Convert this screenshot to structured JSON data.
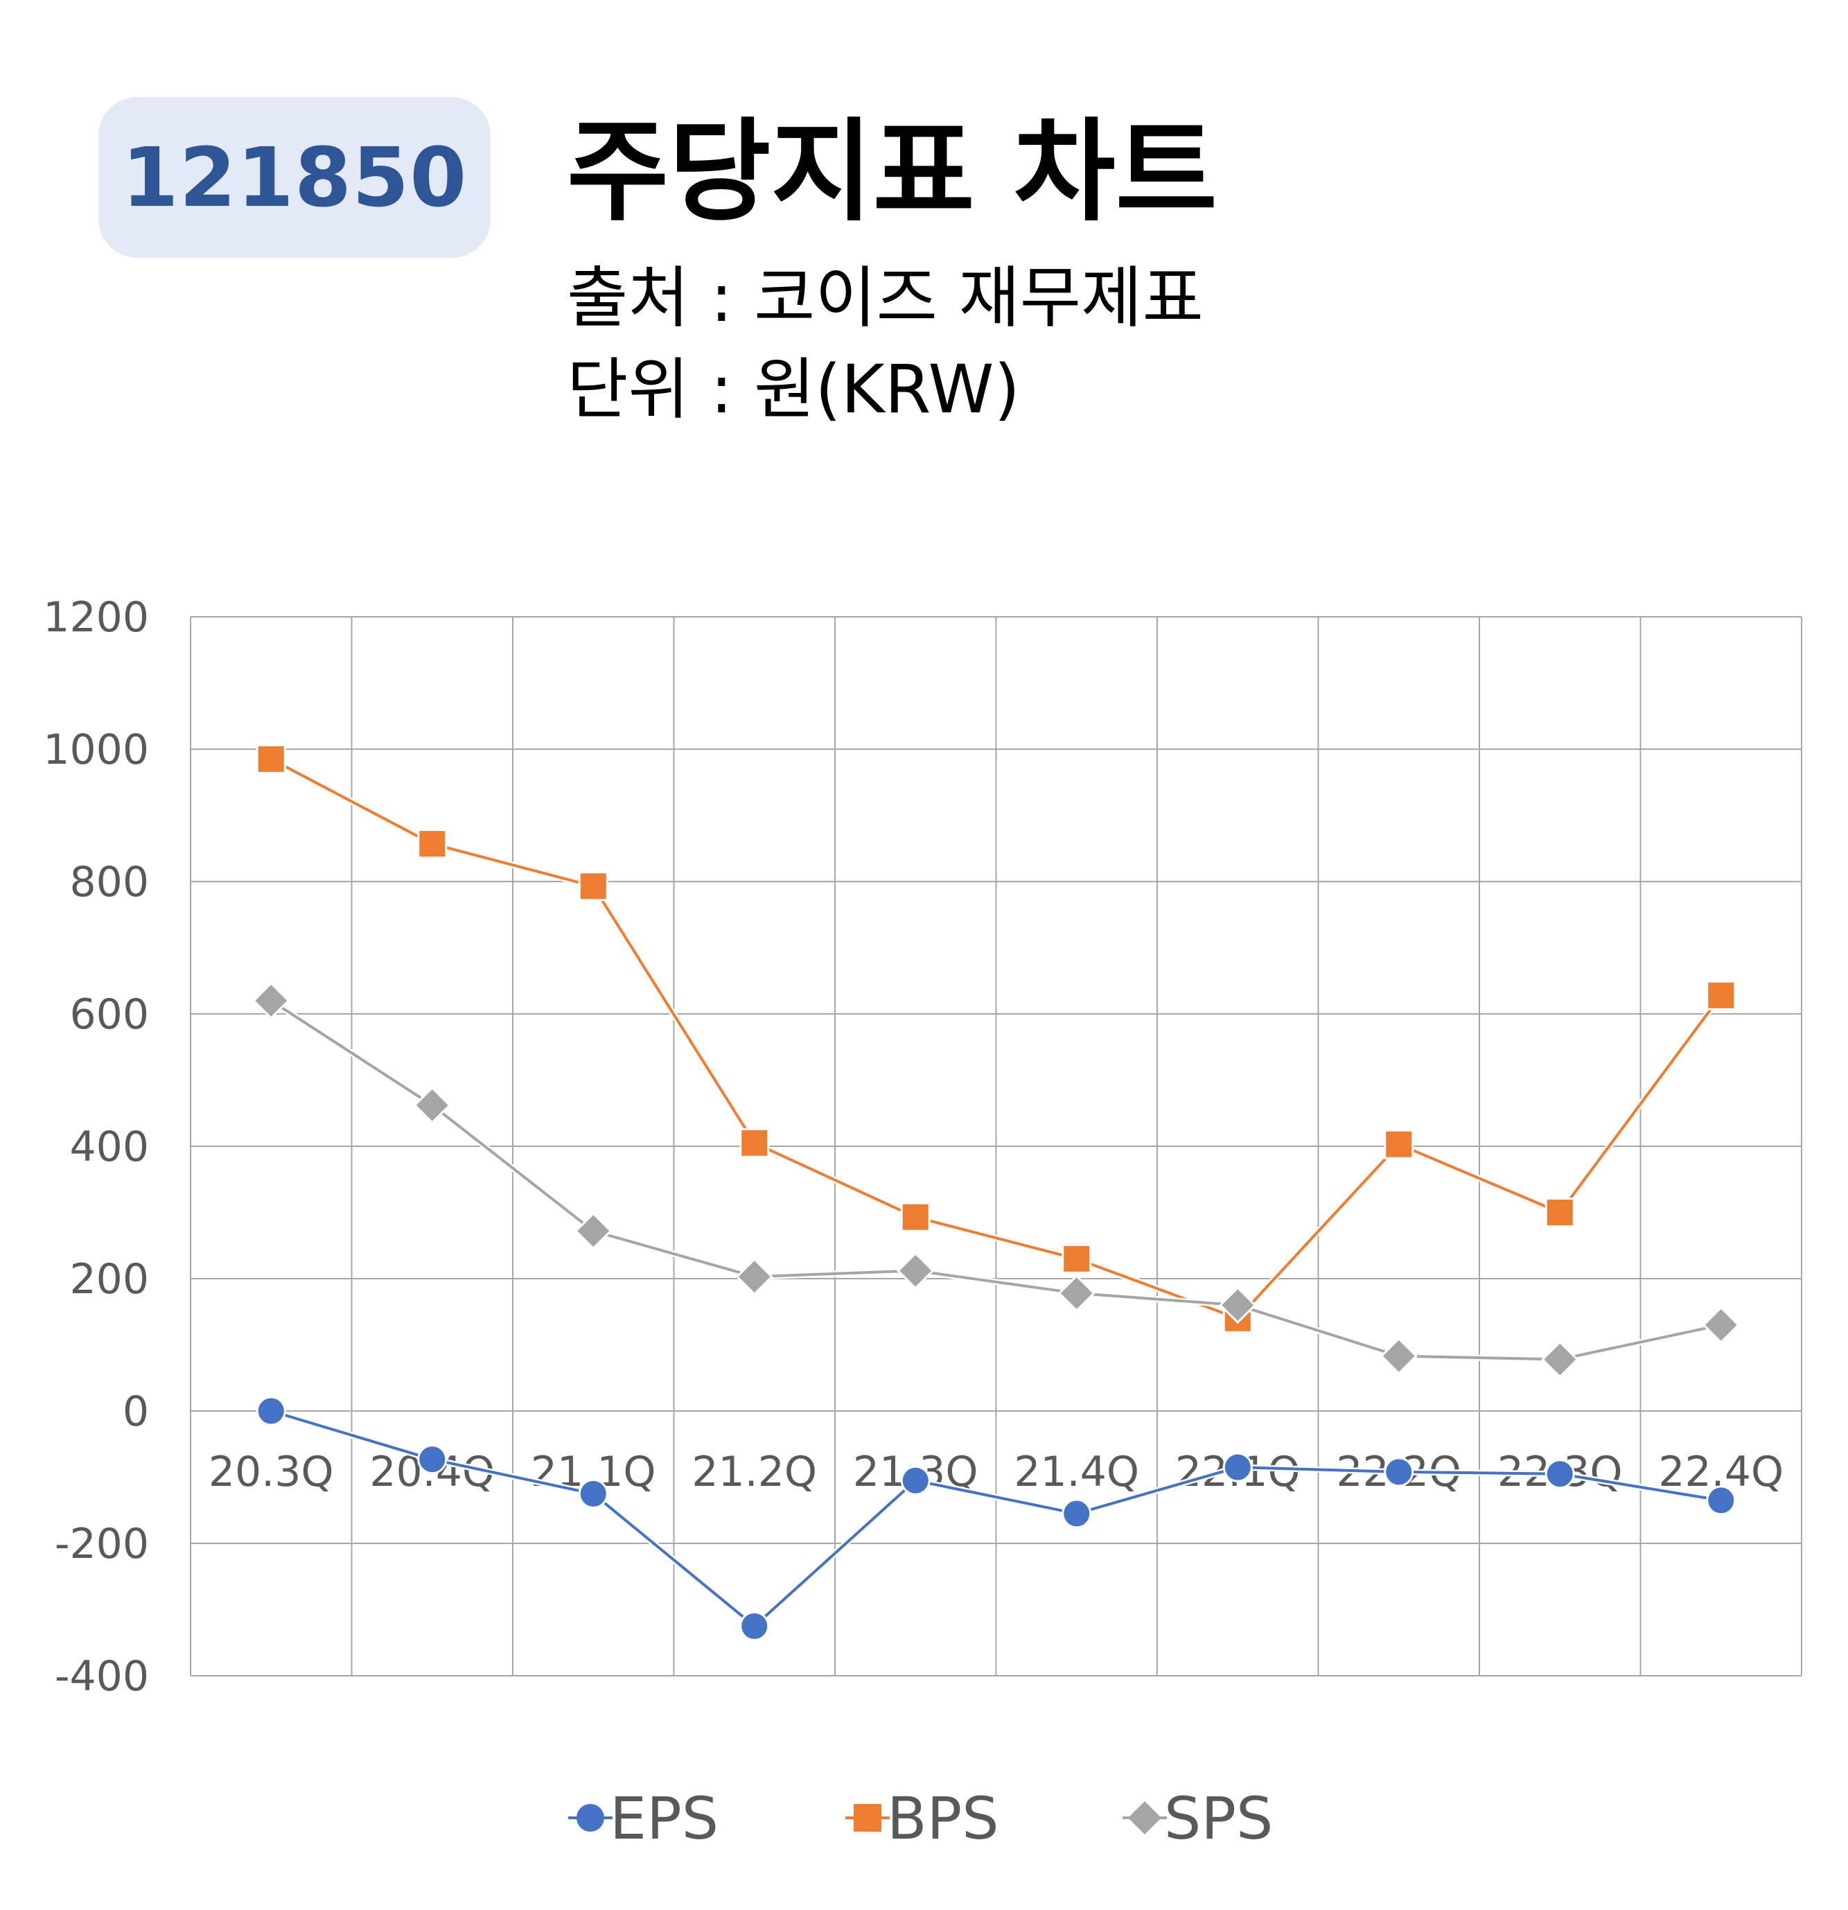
{
  "header": {
    "code": "121850",
    "title": "주당지표 차트",
    "source": "출처 : 코이즈 재무제표",
    "unit": "단위 : 원(KRW)"
  },
  "colors": {
    "badge_bg": "#e3e9f5",
    "badge_text": "#2e5596",
    "grid": "#a6a6a6",
    "tick_text": "#595959"
  },
  "chart_data": {
    "type": "line",
    "categories": [
      "20.3Q",
      "20.4Q",
      "21.1Q",
      "21.2Q",
      "21.3Q",
      "21.4Q",
      "22.1Q",
      "22.2Q",
      "22.3Q",
      "22.4Q"
    ],
    "series": [
      {
        "name": "EPS",
        "color": "#4472c4",
        "marker": "circle",
        "values": [
          0,
          -73,
          -125,
          -325,
          -105,
          -155,
          -85,
          -92,
          -95,
          -135
        ]
      },
      {
        "name": "BPS",
        "color": "#ed7d31",
        "marker": "square",
        "values": [
          985,
          857,
          793,
          405,
          293,
          230,
          140,
          403,
          300,
          628
        ]
      },
      {
        "name": "SPS",
        "color": "#a5a5a5",
        "marker": "diamond",
        "values": [
          620,
          462,
          272,
          203,
          212,
          178,
          160,
          83,
          78,
          130
        ]
      }
    ],
    "yticks": [
      "1200",
      "1000",
      "800",
      "600",
      "400",
      "200",
      "0",
      "-200",
      "-400"
    ],
    "ylim": [
      -400,
      1200
    ],
    "grid": true,
    "legend_position": "bottom"
  }
}
